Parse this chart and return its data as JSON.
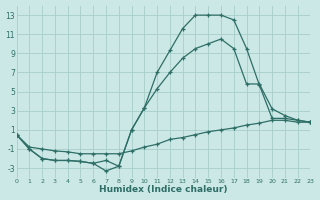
{
  "xlabel": "Humidex (Indice chaleur)",
  "bg_color": "#cce8e6",
  "grid_color": "#a8ceca",
  "line_color": "#2d6e66",
  "curve1_x": [
    0,
    1,
    2,
    3,
    4,
    5,
    6,
    7,
    8,
    9,
    10,
    11,
    12,
    13,
    14,
    15,
    16,
    17,
    18,
    19,
    20,
    21,
    22,
    23
  ],
  "curve1_y": [
    0.5,
    -1.0,
    -2.0,
    -2.2,
    -2.2,
    -2.3,
    -2.5,
    -3.3,
    -2.8,
    1.0,
    3.3,
    7.0,
    9.3,
    11.6,
    13.0,
    13.0,
    13.0,
    12.5,
    9.5,
    5.7,
    2.2,
    2.2,
    2.0,
    1.8
  ],
  "curve2_x": [
    0,
    1,
    2,
    3,
    4,
    5,
    6,
    7,
    8,
    9,
    10,
    11,
    12,
    13,
    14,
    15,
    16,
    17,
    18,
    19,
    20,
    21,
    22,
    23
  ],
  "curve2_y": [
    0.5,
    -1.0,
    -2.0,
    -2.2,
    -2.2,
    -2.3,
    -2.5,
    -2.2,
    -2.8,
    1.0,
    3.3,
    5.3,
    7.0,
    8.5,
    9.5,
    10.0,
    10.5,
    9.5,
    5.8,
    5.8,
    3.2,
    2.5,
    2.0,
    1.8
  ],
  "curve3_x": [
    0,
    1,
    2,
    3,
    4,
    5,
    6,
    7,
    8,
    9,
    10,
    11,
    12,
    13,
    14,
    15,
    16,
    17,
    18,
    19,
    20,
    21,
    22,
    23
  ],
  "curve3_y": [
    0.5,
    -0.8,
    -1.0,
    -1.2,
    -1.3,
    -1.5,
    -1.5,
    -1.5,
    -1.5,
    -1.2,
    -0.8,
    -0.5,
    0.0,
    0.2,
    0.5,
    0.8,
    1.0,
    1.2,
    1.5,
    1.7,
    2.0,
    2.0,
    1.8,
    1.8
  ],
  "xlim": [
    0,
    23
  ],
  "ylim": [
    -4,
    14
  ],
  "yticks": [
    -3,
    -1,
    1,
    3,
    5,
    7,
    9,
    11,
    13
  ],
  "xticks": [
    0,
    1,
    2,
    3,
    4,
    5,
    6,
    7,
    8,
    9,
    10,
    11,
    12,
    13,
    14,
    15,
    16,
    17,
    18,
    19,
    20,
    21,
    22,
    23
  ]
}
